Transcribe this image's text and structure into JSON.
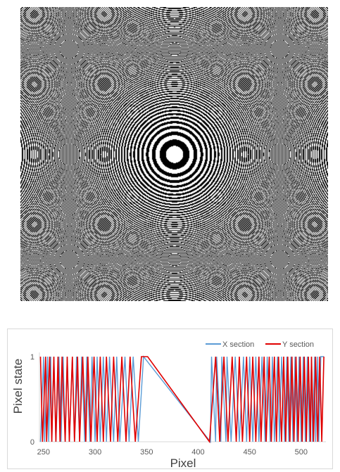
{
  "pattern": {
    "name": "binary-zone-plate-hologram",
    "colors": {
      "on": "#000000",
      "off": "#ffffff"
    }
  },
  "chart_data": {
    "type": "line",
    "title": "",
    "xlabel": "Pixel",
    "ylabel": "Pixel state",
    "xlim": [
      246,
      524
    ],
    "ylim": [
      0,
      1
    ],
    "xticks": [
      250,
      300,
      350,
      400,
      450,
      500
    ],
    "yticks": [
      0,
      1
    ],
    "grid": false,
    "legend_position": "top-right",
    "series": [
      {
        "name": "X section",
        "color": "#5b9bd5",
        "x": [
          247,
          250,
          251,
          254,
          255,
          257,
          258,
          260,
          262,
          265,
          267,
          269,
          271,
          273,
          275,
          278,
          280,
          282,
          285,
          287,
          290,
          292,
          295,
          297,
          300,
          302,
          305,
          308,
          311,
          314,
          318,
          321,
          324,
          329,
          333,
          337,
          342,
          347,
          412,
          413,
          417,
          418,
          422,
          423,
          427,
          428,
          432,
          436,
          440,
          444,
          447,
          450,
          453,
          456,
          459,
          462,
          465,
          467,
          470,
          472,
          474,
          477,
          479,
          481,
          484,
          486,
          488,
          490,
          492,
          494,
          496,
          498,
          500,
          502,
          504,
          506,
          508,
          510,
          511,
          513,
          514,
          516,
          517,
          519,
          522
        ],
        "values": [
          0,
          1,
          0,
          1,
          0,
          1,
          0,
          1,
          0,
          1,
          0,
          1,
          0,
          1,
          0,
          1,
          0,
          1,
          0,
          1,
          0,
          1,
          0,
          1,
          0,
          1,
          0,
          1,
          0,
          1,
          0,
          1,
          0,
          1,
          0,
          1,
          0,
          1,
          0,
          1,
          0,
          1,
          0,
          1,
          0,
          1,
          0,
          1,
          0,
          1,
          0,
          1,
          0,
          1,
          0,
          1,
          0,
          1,
          0,
          1,
          0,
          1,
          0,
          1,
          0,
          1,
          0,
          1,
          0,
          1,
          0,
          1,
          0,
          1,
          0,
          1,
          0,
          1,
          0,
          1,
          0,
          1,
          0,
          1,
          1
        ]
      },
      {
        "name": "Y section",
        "color": "#e00000",
        "x": [
          247,
          249,
          252,
          253,
          256,
          258,
          260,
          262,
          264,
          266,
          268,
          271,
          273,
          275,
          278,
          280,
          283,
          285,
          288,
          291,
          293,
          296,
          299,
          302,
          305,
          308,
          311,
          315,
          318,
          322,
          326,
          330,
          334,
          339,
          345,
          351,
          411,
          417,
          421,
          425,
          429,
          433,
          437,
          440,
          443,
          447,
          450,
          453,
          456,
          459,
          461,
          464,
          466,
          469,
          471,
          474,
          476,
          478,
          481,
          483,
          485,
          487,
          489,
          491,
          493,
          495,
          497,
          499,
          501,
          503,
          505,
          507,
          509,
          510,
          512,
          514,
          516,
          518,
          520,
          522
        ],
        "values": [
          1,
          0,
          1,
          0,
          1,
          0,
          1,
          0,
          1,
          0,
          1,
          0,
          1,
          0,
          1,
          0,
          1,
          0,
          1,
          0,
          1,
          0,
          1,
          0,
          1,
          0,
          1,
          0,
          1,
          0,
          1,
          0,
          1,
          0,
          1,
          1,
          0,
          1,
          0,
          1,
          0,
          1,
          0,
          1,
          0,
          1,
          0,
          1,
          0,
          1,
          0,
          1,
          0,
          1,
          0,
          1,
          0,
          1,
          0,
          1,
          0,
          1,
          0,
          1,
          0,
          1,
          0,
          1,
          0,
          1,
          0,
          1,
          0,
          1,
          0,
          1,
          0,
          1,
          0,
          1
        ]
      }
    ]
  }
}
